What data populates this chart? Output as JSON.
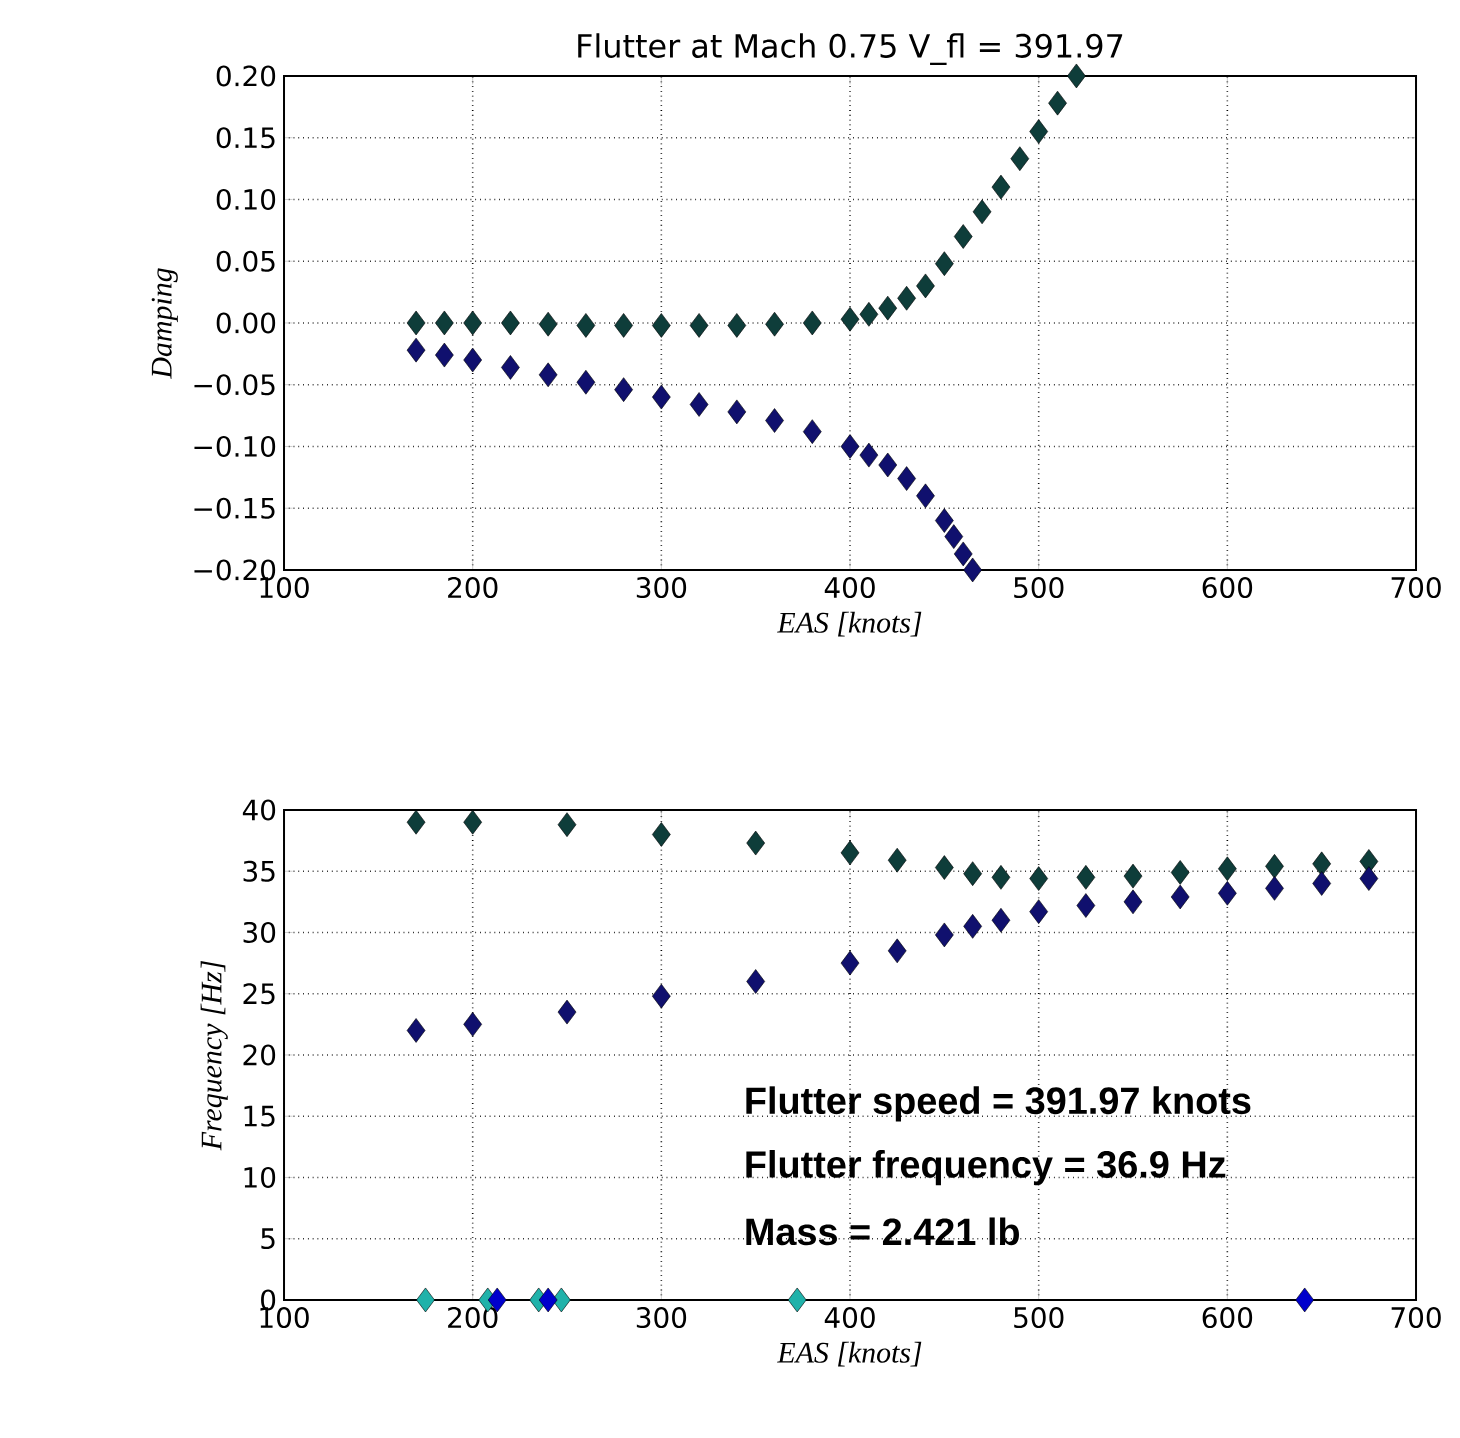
{
  "chart_data": [
    {
      "type": "scatter",
      "title": "Flutter at Mach 0.75 V_fl = 391.97",
      "xlabel": "EAS [knots]",
      "ylabel": "Damping",
      "marker": "diamond",
      "grid": true,
      "xlim": [
        100,
        700
      ],
      "xticks": [
        100,
        200,
        300,
        400,
        500,
        600,
        700
      ],
      "ylim": [
        -0.2,
        0.2
      ],
      "yticks": [
        {
          "value": -0.2,
          "label": "−0.20"
        },
        {
          "value": -0.15,
          "label": "−0.15"
        },
        {
          "value": -0.1,
          "label": "−0.10"
        },
        {
          "value": -0.05,
          "label": "−0.05"
        },
        {
          "value": 0,
          "label": "0.00"
        },
        {
          "value": 0.05,
          "label": "0.05"
        },
        {
          "value": 0.1,
          "label": "0.10"
        },
        {
          "value": 0.15,
          "label": "0.15"
        },
        {
          "value": 0.2,
          "label": "0.20"
        }
      ],
      "series": [
        {
          "color": "#0e3d3a",
          "x": [
            170,
            185,
            200,
            220,
            240,
            260,
            280,
            300,
            320,
            340,
            360,
            380,
            400,
            410,
            420,
            430,
            440,
            450,
            460,
            470,
            480,
            490,
            500,
            510,
            520
          ],
          "values": [
            0,
            0,
            0,
            0,
            -0.001,
            -0.002,
            -0.002,
            -0.002,
            -0.002,
            -0.002,
            -0.001,
            0,
            0.003,
            0.007,
            0.012,
            0.02,
            0.03,
            0.048,
            0.07,
            0.09,
            0.11,
            0.133,
            0.155,
            0.178,
            0.2
          ]
        },
        {
          "color": "#10106e",
          "x": [
            170,
            185,
            200,
            220,
            240,
            260,
            280,
            300,
            320,
            340,
            360,
            380,
            400,
            410,
            420,
            430,
            440,
            450,
            455,
            460,
            465
          ],
          "values": [
            -0.022,
            -0.026,
            -0.03,
            -0.036,
            -0.042,
            -0.048,
            -0.054,
            -0.06,
            -0.066,
            -0.072,
            -0.079,
            -0.088,
            -0.1,
            -0.107,
            -0.115,
            -0.126,
            -0.14,
            -0.16,
            -0.173,
            -0.187,
            -0.2
          ]
        }
      ]
    },
    {
      "type": "scatter",
      "xlabel": "EAS [knots]",
      "ylabel": "Frequency [Hz]",
      "marker": "diamond",
      "grid": true,
      "xlim": [
        100,
        700
      ],
      "xticks": [
        100,
        200,
        300,
        400,
        500,
        600,
        700
      ],
      "ylim": [
        0,
        40
      ],
      "yticks": [
        0,
        5,
        10,
        15,
        20,
        25,
        30,
        35,
        40
      ],
      "series": [
        {
          "color": "#0e3d3a",
          "x": [
            170,
            200,
            250,
            300,
            350,
            400,
            425,
            450,
            465,
            480,
            500,
            525,
            550,
            575,
            600,
            625,
            650,
            675
          ],
          "values": [
            39,
            39,
            38.8,
            38,
            37.3,
            36.5,
            35.9,
            35.3,
            34.8,
            34.5,
            34.4,
            34.5,
            34.6,
            34.9,
            35.2,
            35.4,
            35.6,
            35.8
          ]
        },
        {
          "color": "#10106e",
          "x": [
            170,
            200,
            250,
            300,
            350,
            400,
            425,
            450,
            465,
            480,
            500,
            525,
            550,
            575,
            600,
            625,
            650,
            675
          ],
          "values": [
            22,
            22.5,
            23.5,
            24.8,
            26,
            27.5,
            28.5,
            29.8,
            30.5,
            31,
            31.7,
            32.2,
            32.5,
            32.9,
            33.2,
            33.6,
            34,
            34.4
          ]
        },
        {
          "color": "#20b2aa",
          "x": [
            175,
            208,
            235,
            247,
            372
          ],
          "values": [
            0,
            0,
            0,
            0,
            0
          ]
        },
        {
          "color": "#0000cc",
          "x": [
            213,
            240,
            641
          ],
          "values": [
            0,
            0,
            0
          ]
        }
      ],
      "annotations": [
        "Flutter speed = 391.97 knots",
        "Flutter frequency = 36.9 Hz",
        "Mass  = 2.421 lb"
      ]
    }
  ]
}
